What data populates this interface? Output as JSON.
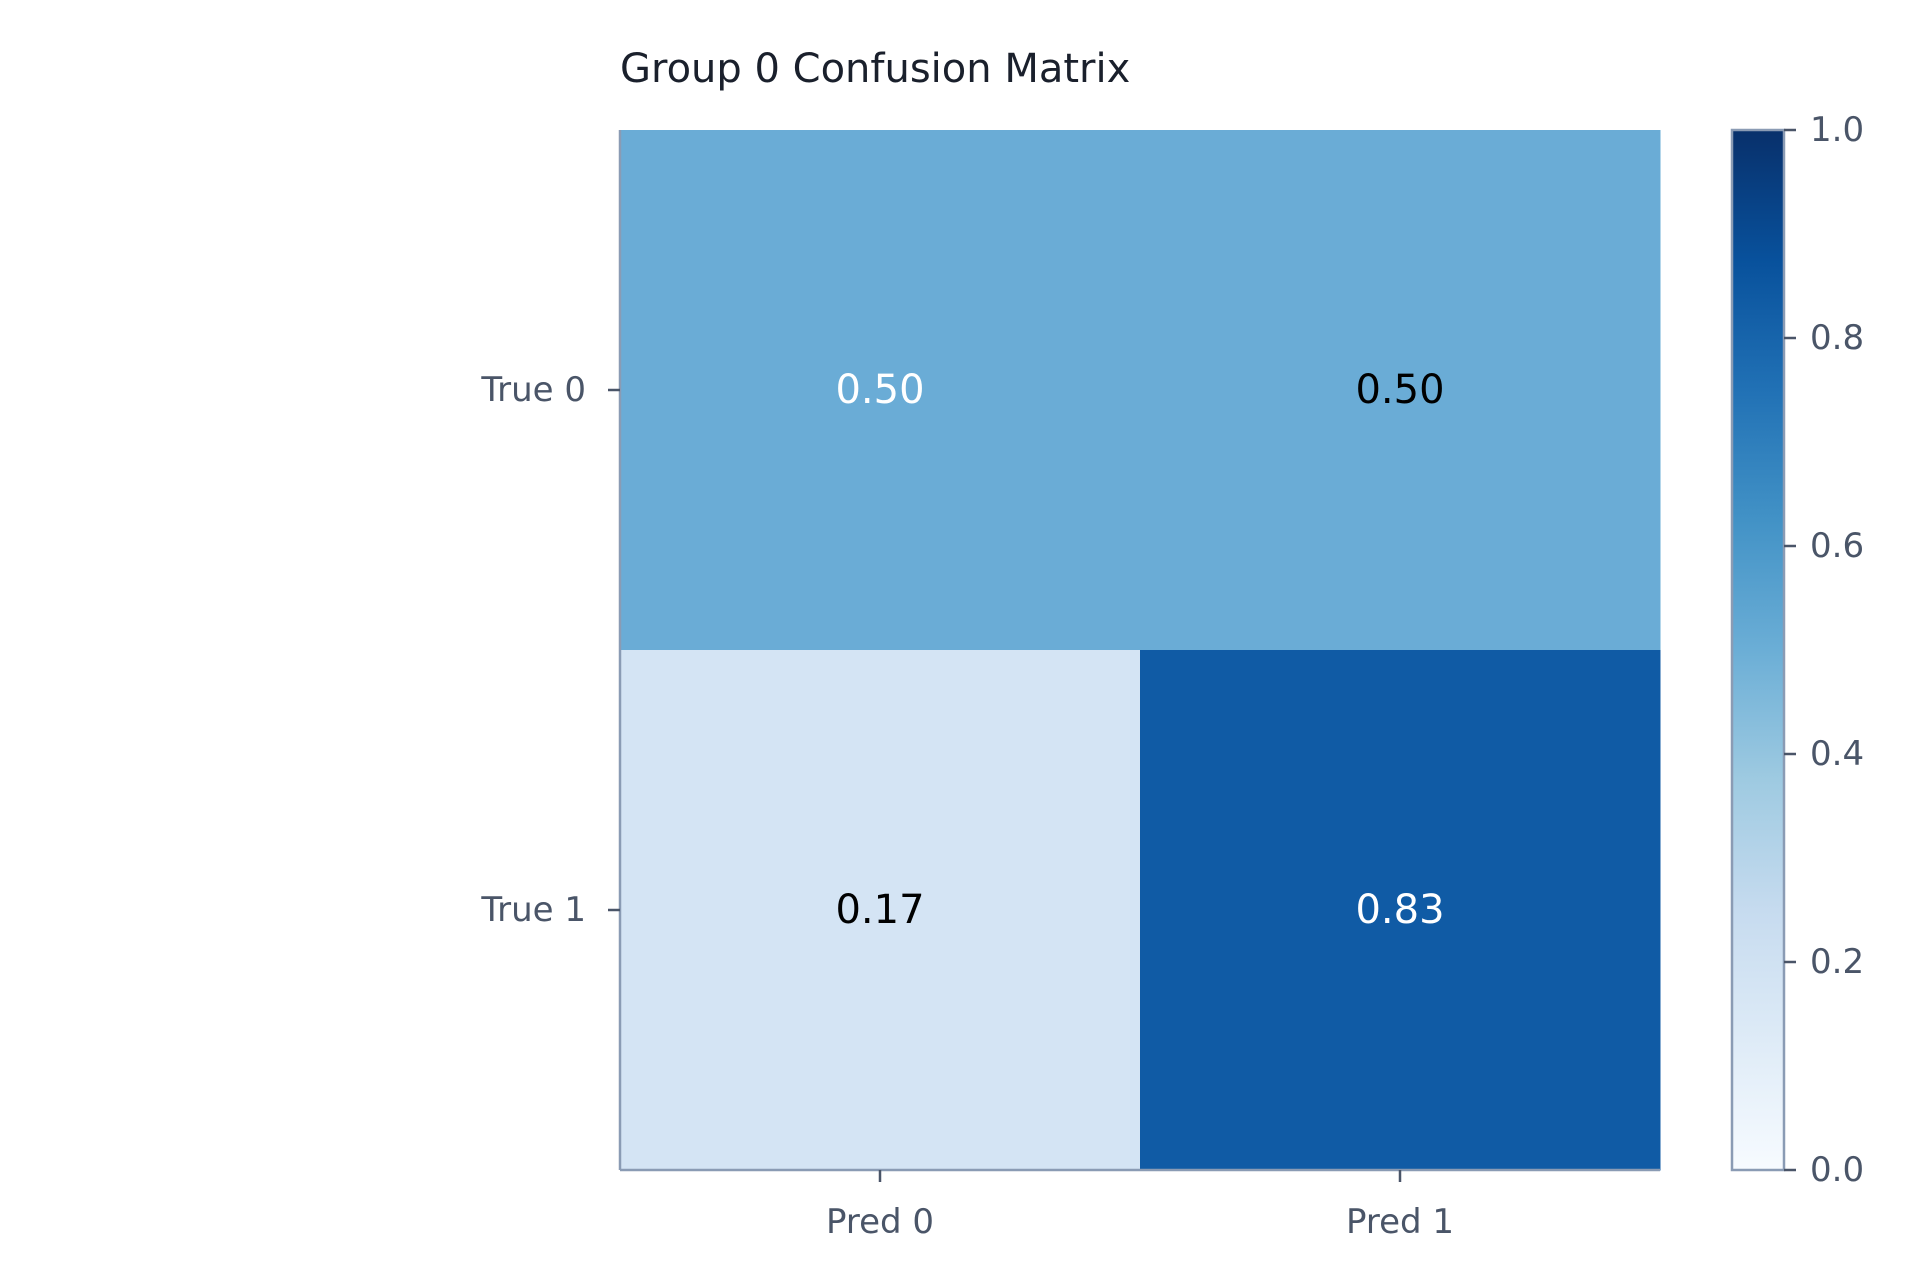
{
  "chart_data": {
    "type": "heatmap",
    "title": "Group 0 Confusion Matrix",
    "xlabel": "",
    "ylabel": "",
    "x_categories": [
      "Pred 0",
      "Pred 1"
    ],
    "y_categories": [
      "True 0",
      "True 1"
    ],
    "values": [
      [
        0.5,
        0.5
      ],
      [
        0.17,
        0.83
      ]
    ],
    "cell_labels": [
      [
        "0.50",
        "0.50"
      ],
      [
        "0.17",
        "0.83"
      ]
    ],
    "colormap": "Blues",
    "clim": [
      0.0,
      1.0
    ],
    "colorbar": {
      "ticks": [
        0.0,
        0.2,
        0.4,
        0.6,
        0.8,
        1.0
      ],
      "tick_labels": [
        "0.0",
        "0.2",
        "0.4",
        "0.6",
        "0.8",
        "1.0"
      ],
      "placement": "right"
    },
    "grid": false
  },
  "colors": {
    "axis": "#8a9bb4",
    "tick_text": "#4a5568",
    "title_text": "#1a202c",
    "cell_colors": [
      [
        "#6aacd6",
        "#6aacd6"
      ],
      [
        "#d4e4f4",
        "#105ba5"
      ]
    ],
    "cell_text_colors": [
      [
        "#ffffff",
        "#000000"
      ],
      [
        "#000000",
        "#ffffff"
      ]
    ],
    "colormap_stops": [
      "#f7fbff",
      "#deebf7",
      "#c6dbef",
      "#9ecae1",
      "#6baed6",
      "#4292c6",
      "#2171b5",
      "#08519c",
      "#08306b"
    ]
  }
}
